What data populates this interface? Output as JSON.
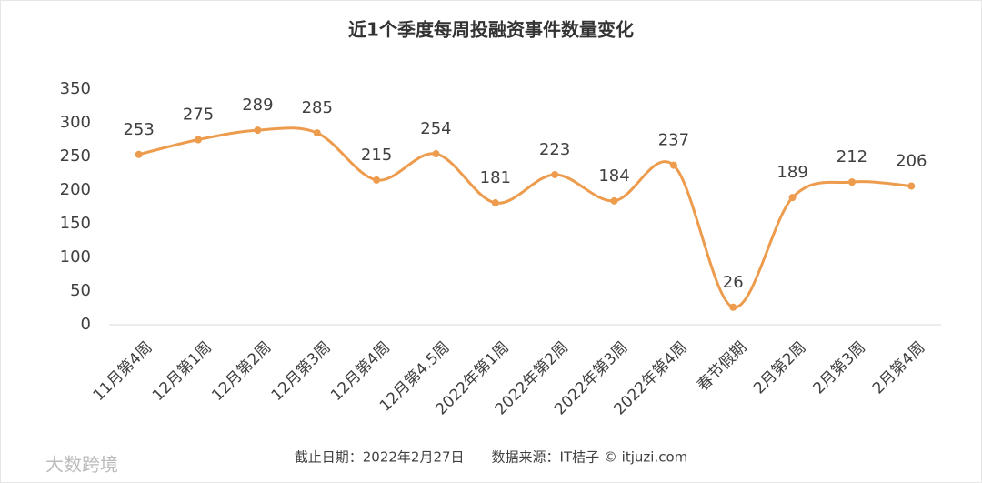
{
  "chart_data": {
    "type": "line",
    "title": "近1个季度每周投融资事件数量变化",
    "categories": [
      "11月第4周",
      "12月第1周",
      "12月第2周",
      "12月第3周",
      "12月第4周",
      "12月第4.5周",
      "2022年第1周",
      "2022年第2周",
      "2022年第3周",
      "2022年第4周",
      "春节假期",
      "2月第2周",
      "2月第3周",
      "2月第4周"
    ],
    "values": [
      253,
      275,
      289,
      285,
      215,
      254,
      181,
      223,
      184,
      237,
      26,
      189,
      212,
      206
    ],
    "color": "#ED9B4D",
    "smooth": true,
    "ylim": [
      0,
      350
    ],
    "yticks": [
      0,
      50,
      100,
      150,
      200,
      250,
      300,
      350
    ],
    "grid": false,
    "source": "截止日期：2022年2月27日　　数据来源：IT桔子 © itjuzi.com",
    "watermark": "大数跨境"
  }
}
